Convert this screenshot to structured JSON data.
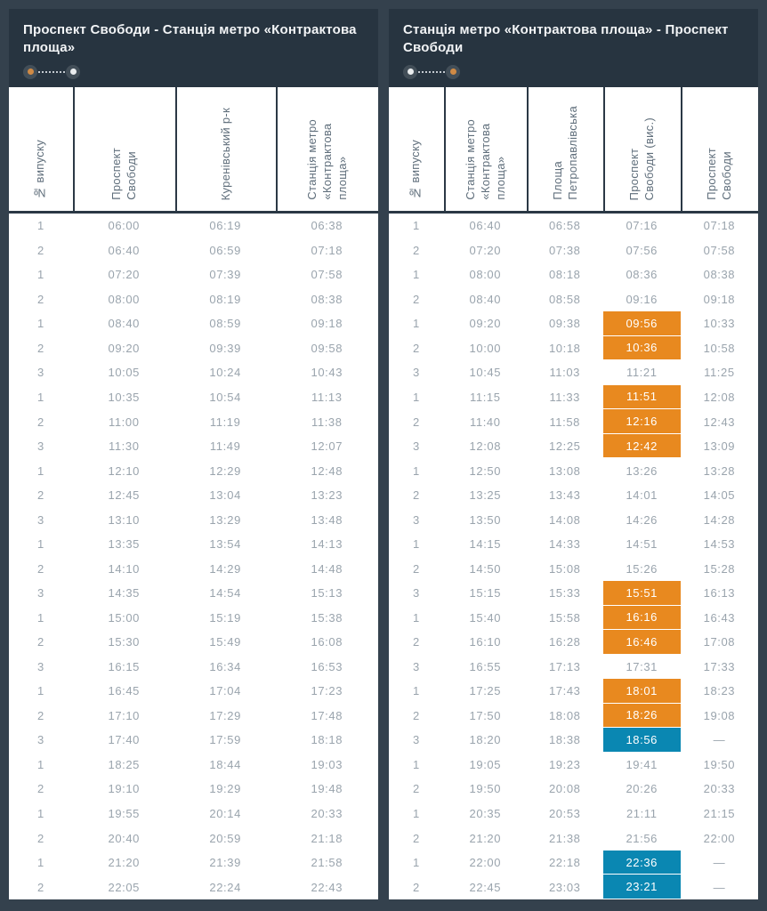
{
  "colors": {
    "page_bg": "#34414d",
    "panel_header_bg": "#273440",
    "table_bg": "#ffffff",
    "divider": "#2b3845",
    "time_text": "#9aa4ad",
    "header_text": "#5f6e7b",
    "title_text": "#f2f4f6",
    "highlight_orange": "#e8891f",
    "highlight_blue": "#0a87b2",
    "dot_orange": "#d08a45",
    "dot_white": "#e9ecee"
  },
  "panels": [
    {
      "title": "Проспект Свободи - Станція метро «Контрактова площа»",
      "route_icon": {
        "start": "orange",
        "end": "white"
      },
      "columns": [
        "№ випуску",
        "Проспект\nСвободи",
        "Куренівський р-к",
        "Станція метро\n«Контрактова\nплоща»"
      ],
      "rows": [
        {
          "c": [
            "1",
            "06:00",
            "06:19",
            "06:38"
          ]
        },
        {
          "c": [
            "2",
            "06:40",
            "06:59",
            "07:18"
          ]
        },
        {
          "c": [
            "1",
            "07:20",
            "07:39",
            "07:58"
          ]
        },
        {
          "c": [
            "2",
            "08:00",
            "08:19",
            "08:38"
          ]
        },
        {
          "c": [
            "1",
            "08:40",
            "08:59",
            "09:18"
          ]
        },
        {
          "c": [
            "2",
            "09:20",
            "09:39",
            "09:58"
          ]
        },
        {
          "c": [
            "3",
            "10:05",
            "10:24",
            "10:43"
          ]
        },
        {
          "c": [
            "1",
            "10:35",
            "10:54",
            "11:13"
          ]
        },
        {
          "c": [
            "2",
            "11:00",
            "11:19",
            "11:38"
          ]
        },
        {
          "c": [
            "3",
            "11:30",
            "11:49",
            "12:07"
          ]
        },
        {
          "c": [
            "1",
            "12:10",
            "12:29",
            "12:48"
          ]
        },
        {
          "c": [
            "2",
            "12:45",
            "13:04",
            "13:23"
          ]
        },
        {
          "c": [
            "3",
            "13:10",
            "13:29",
            "13:48"
          ]
        },
        {
          "c": [
            "1",
            "13:35",
            "13:54",
            "14:13"
          ]
        },
        {
          "c": [
            "2",
            "14:10",
            "14:29",
            "14:48"
          ]
        },
        {
          "c": [
            "3",
            "14:35",
            "14:54",
            "15:13"
          ]
        },
        {
          "c": [
            "1",
            "15:00",
            "15:19",
            "15:38"
          ]
        },
        {
          "c": [
            "2",
            "15:30",
            "15:49",
            "16:08"
          ]
        },
        {
          "c": [
            "3",
            "16:15",
            "16:34",
            "16:53"
          ]
        },
        {
          "c": [
            "1",
            "16:45",
            "17:04",
            "17:23"
          ]
        },
        {
          "c": [
            "2",
            "17:10",
            "17:29",
            "17:48"
          ]
        },
        {
          "c": [
            "3",
            "17:40",
            "17:59",
            "18:18"
          ]
        },
        {
          "c": [
            "1",
            "18:25",
            "18:44",
            "19:03"
          ]
        },
        {
          "c": [
            "2",
            "19:10",
            "19:29",
            "19:48"
          ]
        },
        {
          "c": [
            "1",
            "19:55",
            "20:14",
            "20:33"
          ]
        },
        {
          "c": [
            "2",
            "20:40",
            "20:59",
            "21:18"
          ]
        },
        {
          "c": [
            "1",
            "21:20",
            "21:39",
            "21:58"
          ]
        },
        {
          "c": [
            "2",
            "22:05",
            "22:24",
            "22:43"
          ]
        }
      ]
    },
    {
      "title": "Станція метро «Контрактова площа» - Проспект Свободи",
      "route_icon": {
        "start": "white",
        "end": "orange"
      },
      "columns": [
        "№ випуску",
        "Станція метро\n«Контрактова\nплоща»",
        "Площа\nПетропавлівська",
        "Проспект\nСвободи (вис.)",
        "Проспект\nСвободи"
      ],
      "rows": [
        {
          "c": [
            "1",
            "06:40",
            "06:58",
            "07:16",
            "07:18"
          ]
        },
        {
          "c": [
            "2",
            "07:20",
            "07:38",
            "07:56",
            "07:58"
          ]
        },
        {
          "c": [
            "1",
            "08:00",
            "08:18",
            "08:36",
            "08:38"
          ]
        },
        {
          "c": [
            "2",
            "08:40",
            "08:58",
            "09:16",
            "09:18"
          ]
        },
        {
          "c": [
            "1",
            "09:20",
            "09:38",
            "09:56",
            "10:33"
          ],
          "hl": {
            "3": "orange"
          }
        },
        {
          "c": [
            "2",
            "10:00",
            "10:18",
            "10:36",
            "10:58"
          ],
          "hl": {
            "3": "orange"
          }
        },
        {
          "c": [
            "3",
            "10:45",
            "11:03",
            "11:21",
            "11:25"
          ]
        },
        {
          "c": [
            "1",
            "11:15",
            "11:33",
            "11:51",
            "12:08"
          ],
          "hl": {
            "3": "orange"
          }
        },
        {
          "c": [
            "2",
            "11:40",
            "11:58",
            "12:16",
            "12:43"
          ],
          "hl": {
            "3": "orange"
          }
        },
        {
          "c": [
            "3",
            "12:08",
            "12:25",
            "12:42",
            "13:09"
          ],
          "hl": {
            "3": "orange"
          }
        },
        {
          "c": [
            "1",
            "12:50",
            "13:08",
            "13:26",
            "13:28"
          ]
        },
        {
          "c": [
            "2",
            "13:25",
            "13:43",
            "14:01",
            "14:05"
          ]
        },
        {
          "c": [
            "3",
            "13:50",
            "14:08",
            "14:26",
            "14:28"
          ]
        },
        {
          "c": [
            "1",
            "14:15",
            "14:33",
            "14:51",
            "14:53"
          ]
        },
        {
          "c": [
            "2",
            "14:50",
            "15:08",
            "15:26",
            "15:28"
          ]
        },
        {
          "c": [
            "3",
            "15:15",
            "15:33",
            "15:51",
            "16:13"
          ],
          "hl": {
            "3": "orange"
          }
        },
        {
          "c": [
            "1",
            "15:40",
            "15:58",
            "16:16",
            "16:43"
          ],
          "hl": {
            "3": "orange"
          }
        },
        {
          "c": [
            "2",
            "16:10",
            "16:28",
            "16:46",
            "17:08"
          ],
          "hl": {
            "3": "orange"
          }
        },
        {
          "c": [
            "3",
            "16:55",
            "17:13",
            "17:31",
            "17:33"
          ]
        },
        {
          "c": [
            "1",
            "17:25",
            "17:43",
            "18:01",
            "18:23"
          ],
          "hl": {
            "3": "orange"
          }
        },
        {
          "c": [
            "2",
            "17:50",
            "18:08",
            "18:26",
            "19:08"
          ],
          "hl": {
            "3": "orange"
          }
        },
        {
          "c": [
            "3",
            "18:20",
            "18:38",
            "18:56",
            "—"
          ],
          "hl": {
            "3": "blue"
          }
        },
        {
          "c": [
            "1",
            "19:05",
            "19:23",
            "19:41",
            "19:50"
          ]
        },
        {
          "c": [
            "2",
            "19:50",
            "20:08",
            "20:26",
            "20:33"
          ]
        },
        {
          "c": [
            "1",
            "20:35",
            "20:53",
            "21:11",
            "21:15"
          ]
        },
        {
          "c": [
            "2",
            "21:20",
            "21:38",
            "21:56",
            "22:00"
          ]
        },
        {
          "c": [
            "1",
            "22:00",
            "22:18",
            "22:36",
            "—"
          ],
          "hl": {
            "3": "blue"
          }
        },
        {
          "c": [
            "2",
            "22:45",
            "23:03",
            "23:21",
            "—"
          ],
          "hl": {
            "3": "blue"
          }
        }
      ]
    }
  ]
}
